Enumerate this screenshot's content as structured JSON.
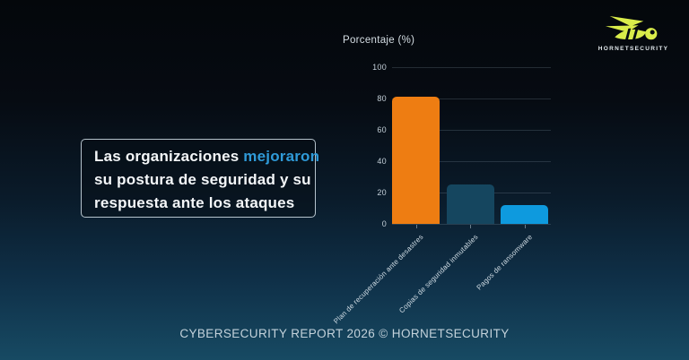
{
  "slide": {
    "footer": "CYBERSECURITY REPORT 2026 © HORNETSECURITY"
  },
  "brand": {
    "name": "HORNETSECURITY",
    "logo_icon": "hornet-logo-icon",
    "logo_color": "#d9ec4a"
  },
  "callout": {
    "highlight_color": "#2f9ad8",
    "full_text": "Las organizaciones mejoraron su postura de seguridad y su respuesta ante los ataques",
    "lines": [
      [
        {
          "t": "Las organizaciones ",
          "h": false
        },
        {
          "t": "mejoraron",
          "h": true
        }
      ],
      [
        {
          "t": "su postura de seguridad y su",
          "h": false
        }
      ],
      [
        {
          "t": "respuesta ante los ataques",
          "h": false
        }
      ]
    ]
  },
  "chart_data": {
    "type": "bar",
    "title": "Porcentaje (%)",
    "categories": [
      "Plan de recuperación ante desastres",
      "Copias de seguridad inmutables",
      "Pagos de ransomware"
    ],
    "values": [
      81,
      25,
      12
    ],
    "bar_colors": [
      "#ee7d12",
      "#15465f",
      "#0e9ade"
    ],
    "xlabel": "",
    "ylabel": "Porcentaje (%)",
    "ylim": [
      0,
      100
    ],
    "yticks": [
      0,
      20,
      40,
      60,
      80,
      100
    ],
    "grid": true,
    "legend": false,
    "grid_color": "rgba(175,198,214,0.18)"
  }
}
